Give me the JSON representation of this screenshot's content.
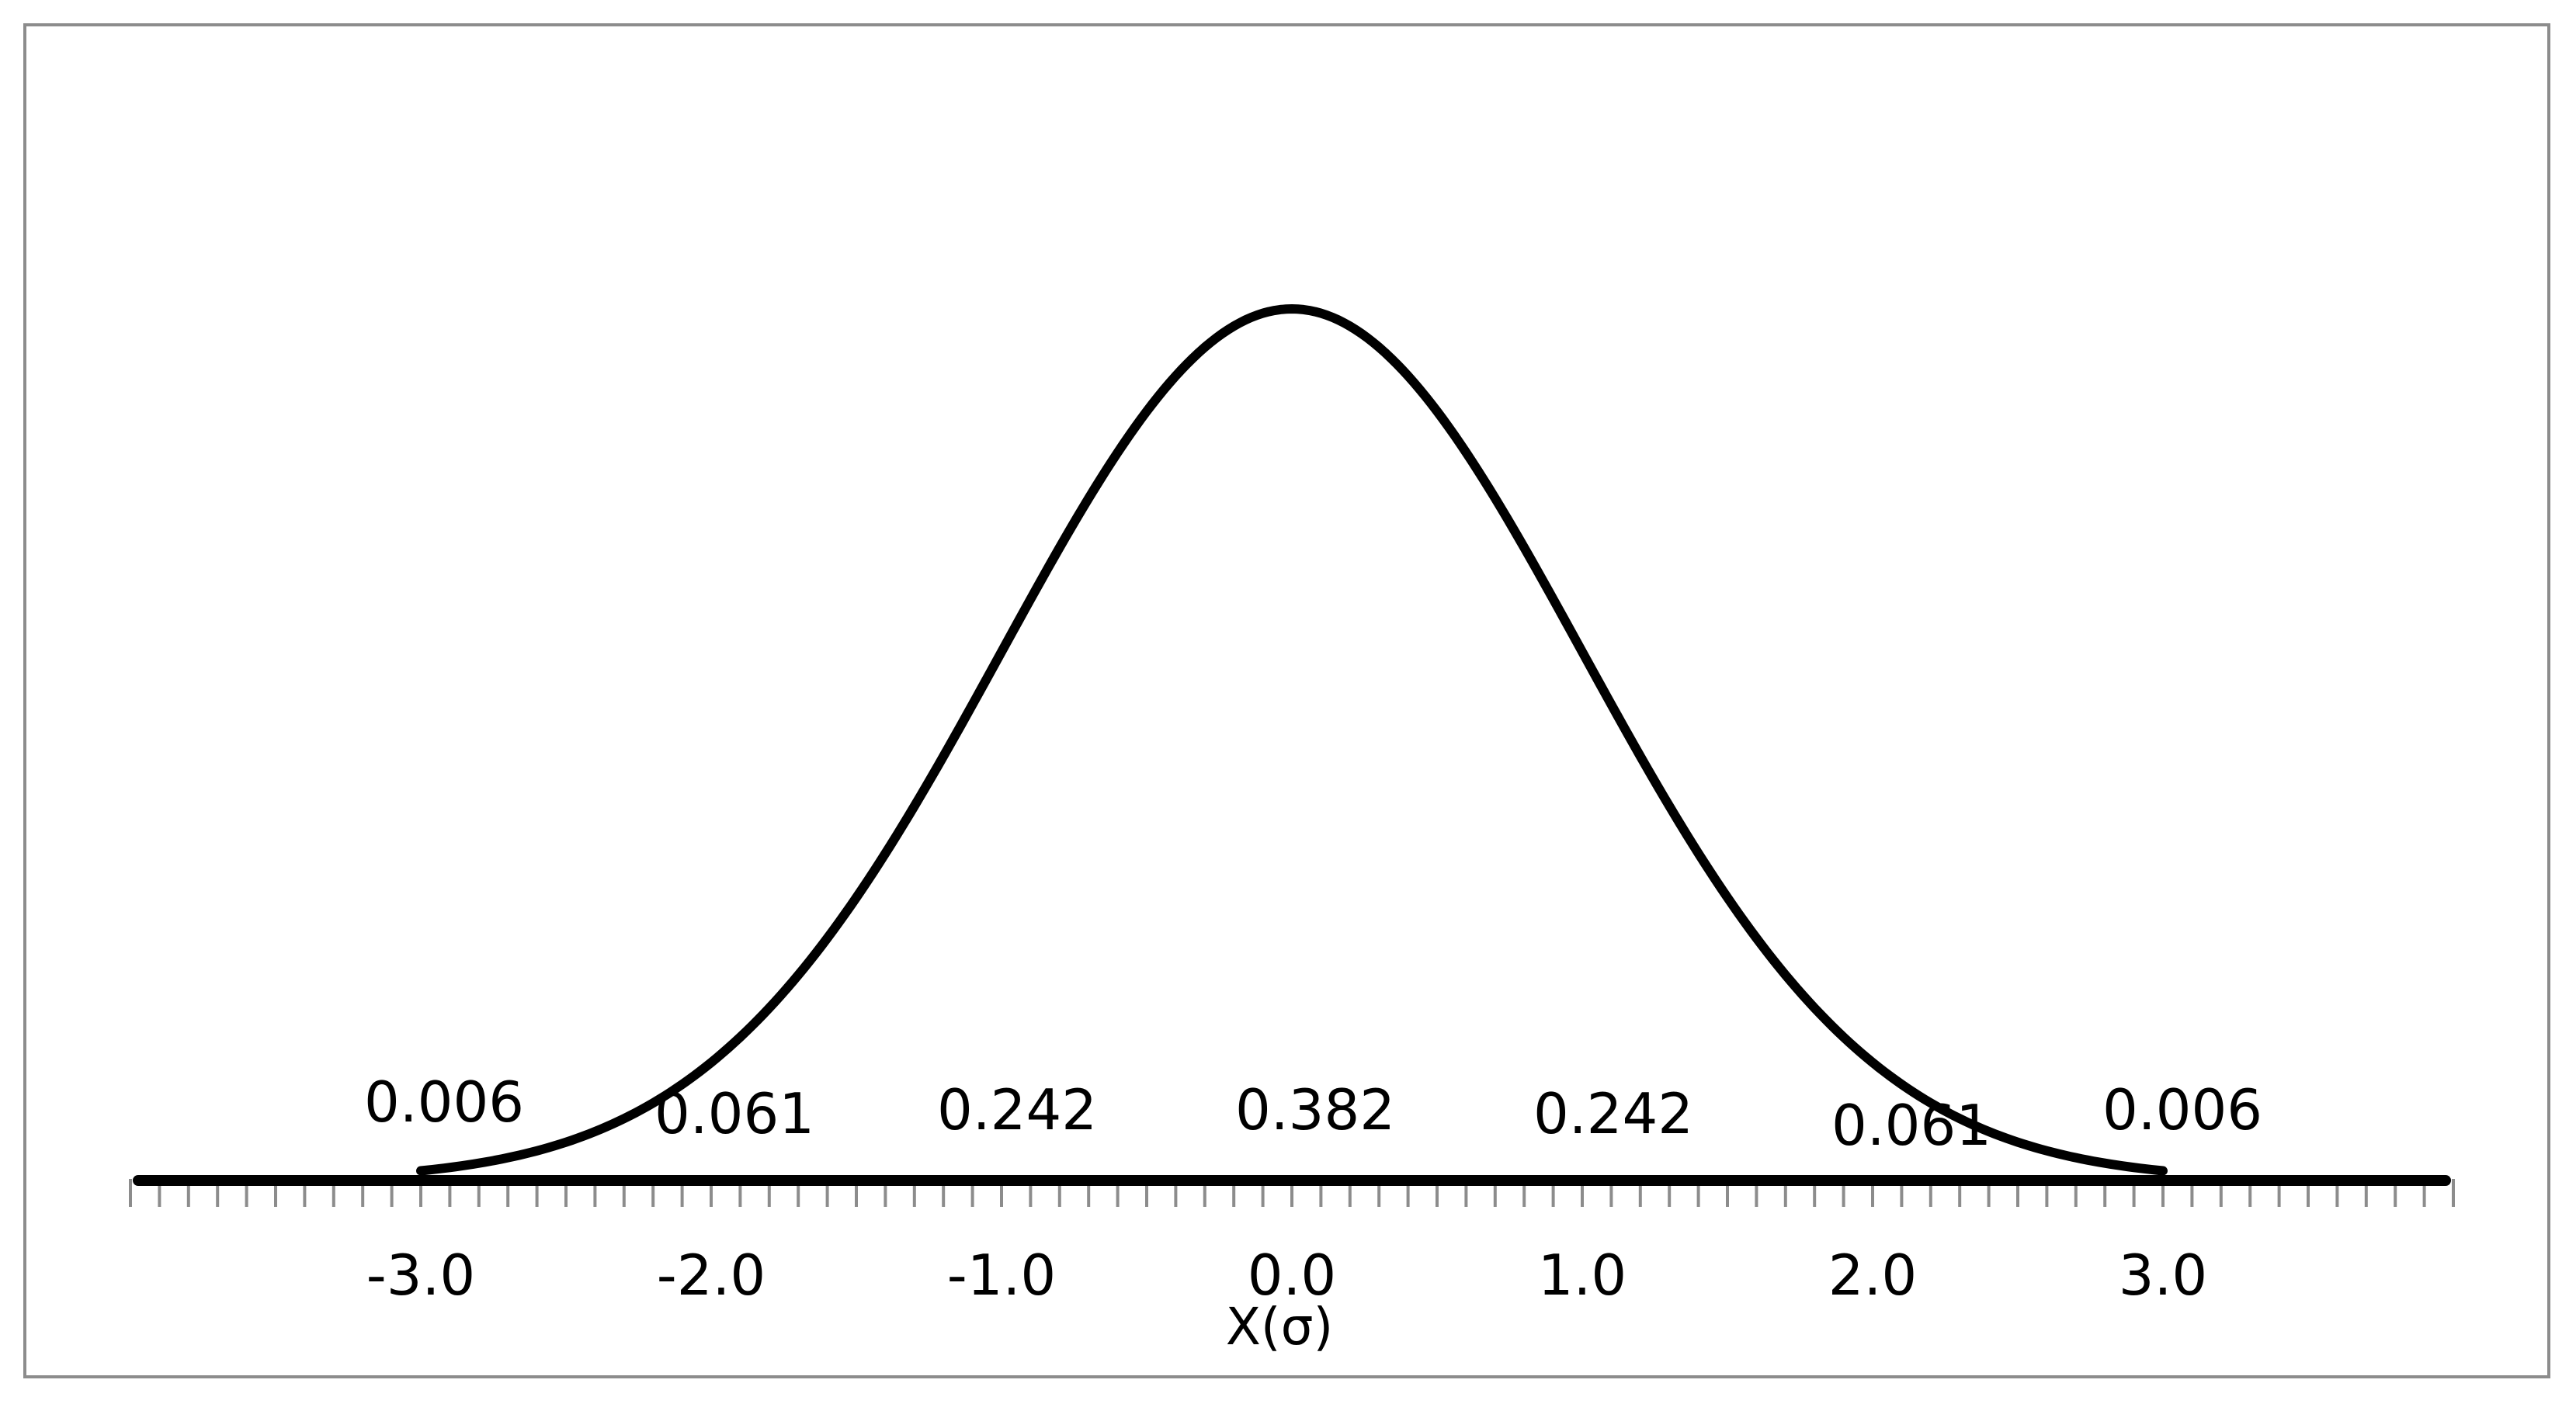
{
  "chart_data": {
    "type": "line",
    "title": "",
    "xlabel": "X(σ)",
    "ylabel": "",
    "xlim": [
      -4.0,
      4.0
    ],
    "ylim": [
      0,
      0.4
    ],
    "grid": false,
    "legend": "none",
    "x_tick_values": [
      -3.0,
      -2.0,
      -1.0,
      0.0,
      1.0,
      2.0,
      3.0
    ],
    "x_tick_labels": [
      "-3.0",
      "-2.0",
      "-1.0",
      "0.0",
      "1.0",
      "2.0",
      "3.0"
    ],
    "minor_tick_step": 0.1,
    "series": [
      {
        "curve": "normal-pdf",
        "mean": 0,
        "sd": 1,
        "x_range": [
          -3.0,
          3.0
        ],
        "color": "#000000"
      }
    ],
    "data_labels": [
      {
        "x": -3.0,
        "text": "0.006"
      },
      {
        "x": -2.0,
        "text": "0.061"
      },
      {
        "x": -1.0,
        "text": "0.242"
      },
      {
        "x": 0.0,
        "text": "0.382"
      },
      {
        "x": 1.0,
        "text": "0.242"
      },
      {
        "x": 2.0,
        "text": "0.061"
      },
      {
        "x": 3.0,
        "text": "0.006"
      }
    ],
    "colors": {
      "curve": "#000000",
      "axis": "#000000",
      "ticks": "#8c8c8c",
      "frame": "#8c8c8c"
    }
  }
}
